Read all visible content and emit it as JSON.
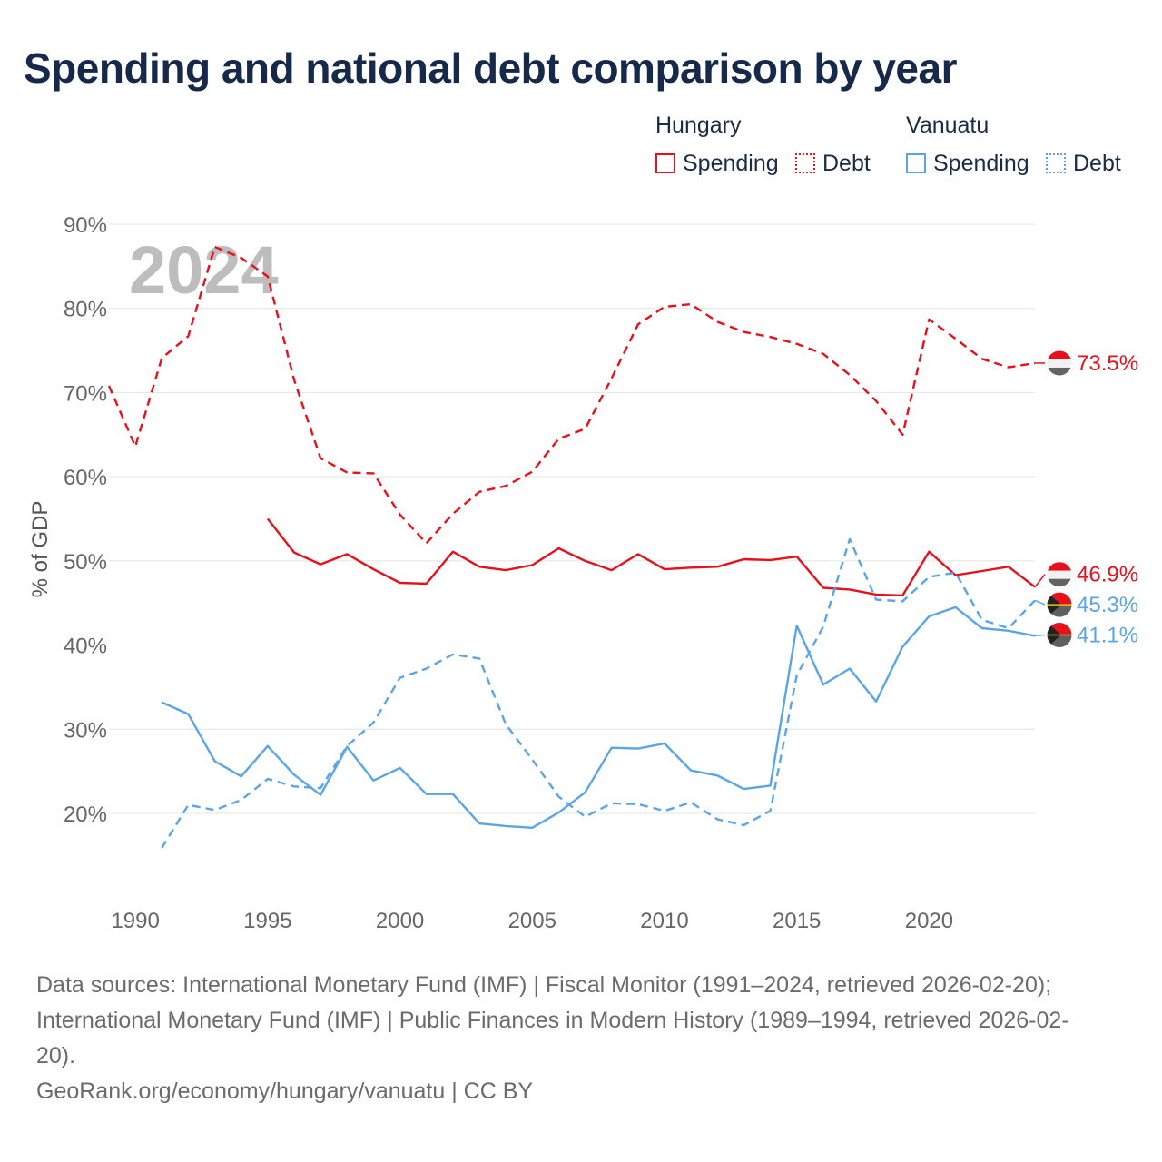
{
  "title": "Spending and national debt comparison by year",
  "legend": {
    "countries": [
      {
        "name": "Hungary",
        "items": [
          "Spending",
          "Debt"
        ],
        "color": "#e8101a"
      },
      {
        "name": "Vanuatu",
        "items": [
          "Spending",
          "Debt"
        ],
        "color": "#5aa5e6"
      }
    ]
  },
  "chart_data": {
    "type": "line",
    "ylabel": "% of GDP",
    "xlabel": "",
    "year_label": "2024",
    "xlim": [
      1989,
      2024
    ],
    "ylim": [
      10,
      90
    ],
    "x_ticks": [
      1990,
      1995,
      2000,
      2005,
      2010,
      2015,
      2020
    ],
    "y_ticks": [
      20,
      30,
      40,
      50,
      60,
      70,
      80,
      90
    ],
    "y_tick_labels": [
      "20%",
      "30%",
      "40%",
      "50%",
      "60%",
      "70%",
      "80%",
      "90%"
    ],
    "grid": true,
    "series": [
      {
        "name": "Hungary Debt",
        "country": "Hungary",
        "metric": "Debt",
        "color": "#e8101a",
        "style": "dashed",
        "x": [
          1989,
          1990,
          1991,
          1992,
          1993,
          1994,
          1995,
          1996,
          1997,
          1998,
          1999,
          2000,
          2001,
          2002,
          2003,
          2004,
          2005,
          2006,
          2007,
          2008,
          2009,
          2010,
          2011,
          2012,
          2013,
          2014,
          2015,
          2016,
          2017,
          2018,
          2019,
          2020,
          2021,
          2022,
          2023,
          2024
        ],
        "values": [
          70.8,
          63.6,
          74.1,
          76.7,
          87.3,
          86.0,
          83.8,
          71.5,
          62.2,
          60.5,
          60.4,
          55.5,
          52.1,
          55.6,
          58.2,
          58.9,
          60.6,
          64.5,
          65.7,
          71.7,
          78.1,
          80.2,
          80.5,
          78.4,
          77.2,
          76.6,
          75.8,
          74.6,
          72.1,
          69.0,
          65.0,
          78.7,
          76.4,
          74.0,
          73.0,
          73.5
        ],
        "end_label": "73.5%"
      },
      {
        "name": "Hungary Spending",
        "country": "Hungary",
        "metric": "Spending",
        "color": "#e8101a",
        "style": "solid",
        "x": [
          1995,
          1996,
          1997,
          1998,
          1999,
          2000,
          2001,
          2002,
          2003,
          2004,
          2005,
          2006,
          2007,
          2008,
          2009,
          2010,
          2011,
          2012,
          2013,
          2014,
          2015,
          2016,
          2017,
          2018,
          2019,
          2020,
          2021,
          2022,
          2023,
          2024
        ],
        "values": [
          55.0,
          51.0,
          49.6,
          50.8,
          49.0,
          47.4,
          47.3,
          51.1,
          49.3,
          48.9,
          49.5,
          51.5,
          50.0,
          48.9,
          50.8,
          49.0,
          49.2,
          49.3,
          50.2,
          50.1,
          50.5,
          46.8,
          46.6,
          46.0,
          45.9,
          51.1,
          48.3,
          48.8,
          49.3,
          46.9
        ],
        "end_label": "46.9%"
      },
      {
        "name": "Vanuatu Debt",
        "country": "Vanuatu",
        "metric": "Debt",
        "color": "#5aa5e6",
        "style": "dashed",
        "x": [
          1991,
          1992,
          1993,
          1994,
          1995,
          1996,
          1997,
          1998,
          1999,
          2000,
          2001,
          2002,
          2003,
          2004,
          2005,
          2006,
          2007,
          2008,
          2009,
          2010,
          2011,
          2012,
          2013,
          2014,
          2015,
          2016,
          2017,
          2018,
          2019,
          2020,
          2021,
          2022,
          2023,
          2024
        ],
        "values": [
          15.9,
          21.0,
          20.4,
          21.6,
          24.1,
          23.2,
          23.0,
          28.0,
          30.8,
          36.1,
          37.2,
          38.9,
          38.4,
          30.6,
          26.4,
          22.0,
          19.6,
          21.2,
          21.1,
          20.3,
          21.3,
          19.3,
          18.6,
          20.3,
          36.4,
          42.2,
          52.6,
          45.4,
          45.2,
          48.1,
          48.6,
          43.0,
          42.0,
          45.3
        ],
        "end_label": "45.3%"
      },
      {
        "name": "Vanuatu Spending",
        "country": "Vanuatu",
        "metric": "Spending",
        "color": "#5aa5e6",
        "style": "solid",
        "x": [
          1991,
          1992,
          1993,
          1994,
          1995,
          1996,
          1997,
          1998,
          1999,
          2000,
          2001,
          2002,
          2003,
          2004,
          2005,
          2006,
          2007,
          2008,
          2009,
          2010,
          2011,
          2012,
          2013,
          2014,
          2015,
          2016,
          2017,
          2018,
          2019,
          2020,
          2021,
          2022,
          2023,
          2024
        ],
        "values": [
          33.2,
          31.8,
          26.2,
          24.4,
          28.0,
          24.6,
          22.2,
          27.9,
          23.9,
          25.4,
          22.3,
          22.3,
          18.8,
          18.5,
          18.3,
          20.1,
          22.5,
          27.8,
          27.7,
          28.3,
          25.1,
          24.5,
          22.9,
          23.3,
          42.3,
          35.3,
          37.2,
          33.3,
          39.8,
          43.4,
          44.5,
          42.0,
          41.7,
          41.1
        ],
        "end_label": "41.1%"
      }
    ]
  },
  "footer": {
    "line1": "Data sources: International Monetary Fund (IMF) | Fiscal Monitor (1991–2024, retrieved 2026-02-20);",
    "line2": "International Monetary Fund (IMF) | Public Finances in Modern History (1989–1994, retrieved 2026-02-",
    "line3": "20).",
    "line4": "GeoRank.org/economy/hungary/vanuatu | CC BY"
  }
}
